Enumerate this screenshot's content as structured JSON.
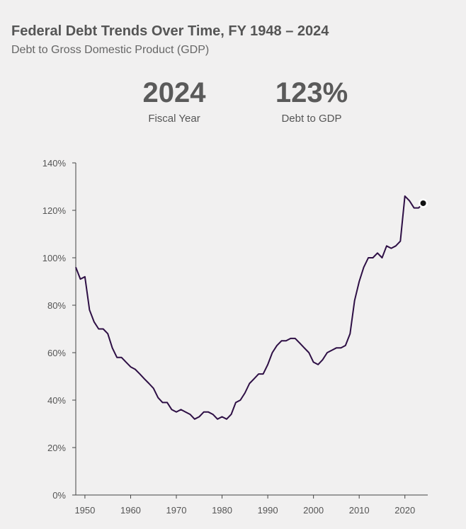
{
  "header": {
    "title": "Federal Debt Trends Over Time, FY 1948 – 2024",
    "subtitle": "Debt to Gross Domestic Product (GDP)"
  },
  "stats": {
    "year_value": "2024",
    "year_label": "Fiscal Year",
    "debt_value": "123%",
    "debt_label": "Debt to GDP"
  },
  "colors": {
    "line": "#2e0f45",
    "marker": "#111111",
    "axis": "#444444"
  },
  "chart_data": {
    "type": "line",
    "title": "Federal Debt Trends Over Time, FY 1948 – 2024",
    "subtitle": "Debt to Gross Domestic Product (GDP)",
    "xlabel": "",
    "ylabel": "",
    "xlim": [
      1948,
      2025
    ],
    "ylim": [
      0,
      140
    ],
    "x_ticks": [
      1950,
      1960,
      1970,
      1980,
      1990,
      2000,
      2010,
      2020
    ],
    "x_tick_labels": [
      "1950",
      "1960",
      "1970",
      "1980",
      "1990",
      "2000",
      "2010",
      "2020"
    ],
    "y_ticks": [
      0,
      20,
      40,
      60,
      80,
      100,
      120,
      140
    ],
    "y_tick_labels": [
      "0%",
      "20%",
      "40%",
      "60%",
      "80%",
      "100%",
      "120%",
      "140%"
    ],
    "grid": false,
    "highlight": {
      "x": 2024,
      "y": 123
    },
    "series": [
      {
        "name": "Debt to GDP (%)",
        "x": [
          1948,
          1949,
          1950,
          1951,
          1952,
          1953,
          1954,
          1955,
          1956,
          1957,
          1958,
          1959,
          1960,
          1961,
          1962,
          1963,
          1964,
          1965,
          1966,
          1967,
          1968,
          1969,
          1970,
          1971,
          1972,
          1973,
          1974,
          1975,
          1976,
          1977,
          1978,
          1979,
          1980,
          1981,
          1982,
          1983,
          1984,
          1985,
          1986,
          1987,
          1988,
          1989,
          1990,
          1991,
          1992,
          1993,
          1994,
          1995,
          1996,
          1997,
          1998,
          1999,
          2000,
          2001,
          2002,
          2003,
          2004,
          2005,
          2006,
          2007,
          2008,
          2009,
          2010,
          2011,
          2012,
          2013,
          2014,
          2015,
          2016,
          2017,
          2018,
          2019,
          2020,
          2021,
          2022,
          2023,
          2024
        ],
        "values": [
          96,
          91,
          92,
          78,
          73,
          70,
          70,
          68,
          62,
          58,
          58,
          56,
          54,
          53,
          51,
          49,
          47,
          45,
          41,
          39,
          39,
          36,
          35,
          36,
          35,
          34,
          32,
          33,
          35,
          35,
          34,
          32,
          33,
          32,
          34,
          39,
          40,
          43,
          47,
          49,
          51,
          51,
          55,
          60,
          63,
          65,
          65,
          66,
          66,
          64,
          62,
          60,
          56,
          55,
          57,
          60,
          61,
          62,
          62,
          63,
          68,
          82,
          90,
          96,
          100,
          100,
          102,
          100,
          105,
          104,
          105,
          107,
          126,
          124,
          121,
          121,
          123
        ]
      }
    ]
  }
}
